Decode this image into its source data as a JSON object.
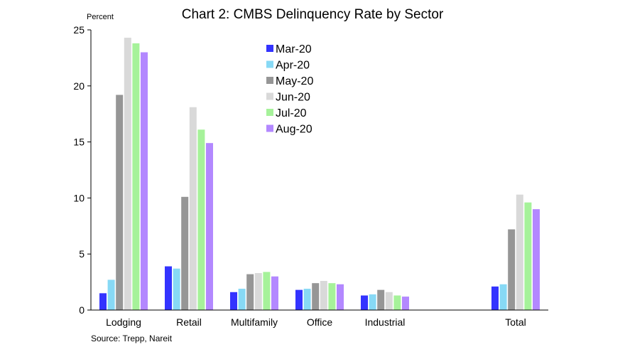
{
  "chart_data": {
    "type": "bar",
    "title": "Chart 2: CMBS Delinquency Rate by Sector",
    "ylabel": "Percent",
    "xlabel": "",
    "ylim": [
      0,
      25
    ],
    "yticks": [
      0,
      5,
      10,
      15,
      20,
      25
    ],
    "grid": false,
    "legend_position": "top-center",
    "categories": [
      "Lodging",
      "Retail",
      "Multifamily",
      "Office",
      "Industrial",
      "",
      "Total"
    ],
    "series": [
      {
        "name": "Mar-20",
        "color": "#3333ff",
        "values": [
          1.5,
          3.9,
          1.6,
          1.8,
          1.3,
          null,
          2.1
        ]
      },
      {
        "name": "Apr-20",
        "color": "#87d9f5",
        "values": [
          2.7,
          3.7,
          1.9,
          1.9,
          1.4,
          null,
          2.3
        ]
      },
      {
        "name": "May-20",
        "color": "#969696",
        "values": [
          19.2,
          10.1,
          3.2,
          2.4,
          1.8,
          null,
          7.2
        ]
      },
      {
        "name": "Jun-20",
        "color": "#d9d9d9",
        "values": [
          24.3,
          18.1,
          3.3,
          2.6,
          1.6,
          null,
          10.3
        ]
      },
      {
        "name": "Jul-20",
        "color": "#a6f29a",
        "values": [
          23.8,
          16.1,
          3.4,
          2.4,
          1.3,
          null,
          9.6
        ]
      },
      {
        "name": "Aug-20",
        "color": "#b388ff",
        "values": [
          23.0,
          14.9,
          3.0,
          2.3,
          1.2,
          null,
          9.0
        ]
      }
    ],
    "source": "Source: Trepp, Nareit"
  }
}
